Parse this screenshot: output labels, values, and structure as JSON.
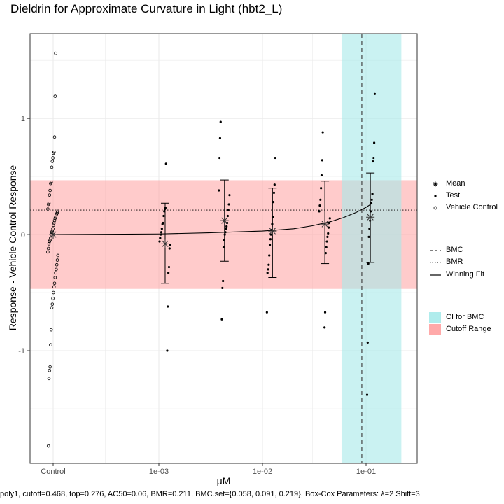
{
  "chart_data": {
    "type": "scatter",
    "title": "Dieldrin for Approximate Curvature in Light (hbt2_L)",
    "xlabel": "μM",
    "ylabel": "Response - Vehicle Control Response",
    "caption": "poly1, cutoff=0.468, top=0.276, AC50=0.06, BMR=0.211, BMC.set={0.058, 0.091, 0.219}, Box-Cox Parameters: λ=2 Shift=3",
    "x_scale": "log10 with separate control position",
    "x_ticks": [
      "Control",
      "1e-03",
      "1e-02",
      "1e-01"
    ],
    "y_ticks": [
      "-1",
      "0",
      "1"
    ],
    "ylim": [
      -1.97,
      1.73
    ],
    "grid": true,
    "legend_position": "right",
    "cutoff": 0.468,
    "bmr": 0.211,
    "bmc": 0.091,
    "ci_bmc": [
      0.058,
      0.219
    ],
    "colors": {
      "ci": "#a6eaea",
      "cutoff": "#ffa0a0",
      "line": "#000000",
      "grid": "#ebebeb"
    },
    "legend": {
      "points": [
        "Mean",
        "Test",
        "Vehicle Control"
      ],
      "lines": [
        "BMC",
        "BMR",
        "Winning Fit"
      ],
      "fills": [
        "CI for BMC",
        "Cutoff Range"
      ]
    },
    "vehicle_control": {
      "values": [
        1.56,
        1.19,
        0.84,
        0.71,
        0.7,
        0.66,
        0.63,
        0.58,
        0.45,
        0.44,
        0.38,
        0.34,
        0.27,
        0.26,
        0.22,
        0.2,
        0.19,
        0.18,
        0.17,
        0.15,
        0.14,
        0.12,
        0.1,
        0.08,
        0.05,
        0.03,
        0.02,
        0.0,
        -0.03,
        -0.05,
        -0.06,
        -0.08,
        -0.12,
        -0.15,
        -0.18,
        -0.22,
        -0.26,
        -0.3,
        -0.33,
        -0.37,
        -0.42,
        -0.45,
        -0.5,
        -0.55,
        -0.6,
        -0.63,
        -0.82,
        -0.95,
        -1.14,
        -1.17,
        -1.24,
        -1.82
      ]
    },
    "groups": [
      {
        "conc": 0.00115,
        "mean": -0.08,
        "err_low": -0.42,
        "err_high": 0.27,
        "values": [
          0.61,
          0.23,
          0.22,
          0.2,
          0.16,
          0.1,
          0.09,
          0.05,
          0.02,
          0.0,
          -0.03,
          -0.06,
          -0.09,
          -0.12,
          -0.28,
          -0.33,
          -0.62,
          -1.0
        ]
      },
      {
        "conc": 0.0043,
        "mean": 0.12,
        "err_low": -0.23,
        "err_high": 0.47,
        "values": [
          0.97,
          0.83,
          0.66,
          0.38,
          0.34,
          0.26,
          0.21,
          0.16,
          0.1,
          0.07,
          0.05,
          0.02,
          0.0,
          -0.05,
          -0.11,
          -0.4,
          -0.46,
          -0.73
        ]
      },
      {
        "conc": 0.0125,
        "mean": 0.03,
        "err_low": -0.37,
        "err_high": 0.4,
        "values": [
          0.66,
          0.43,
          0.36,
          0.28,
          0.15,
          0.09,
          0.04,
          0.0,
          -0.04,
          -0.09,
          -0.18,
          -0.26,
          -0.3,
          -0.33,
          -0.67
        ]
      },
      {
        "conc": 0.04,
        "mean": 0.09,
        "err_low": -0.25,
        "err_high": 0.46,
        "values": [
          0.88,
          0.64,
          0.51,
          0.4,
          0.3,
          0.25,
          0.2,
          0.14,
          0.1,
          0.06,
          0.01,
          -0.02,
          -0.06,
          -0.11,
          -0.16,
          -0.67,
          -0.8
        ]
      },
      {
        "conc": 0.11,
        "mean": 0.15,
        "err_low": -0.24,
        "err_high": 0.53,
        "values": [
          1.21,
          0.79,
          0.66,
          0.63,
          0.35,
          0.3,
          0.27,
          0.2,
          0.12,
          0.05,
          -0.02,
          -0.25,
          -0.93,
          -1.38
        ]
      }
    ],
    "fit": {
      "model": "poly1",
      "x": [
        5e-05,
        0.001,
        0.003,
        0.01,
        0.02,
        0.03,
        0.045,
        0.06,
        0.08,
        0.1,
        0.115
      ],
      "y": [
        0.0,
        0.005,
        0.015,
        0.03,
        0.05,
        0.075,
        0.11,
        0.145,
        0.19,
        0.235,
        0.27
      ]
    }
  }
}
